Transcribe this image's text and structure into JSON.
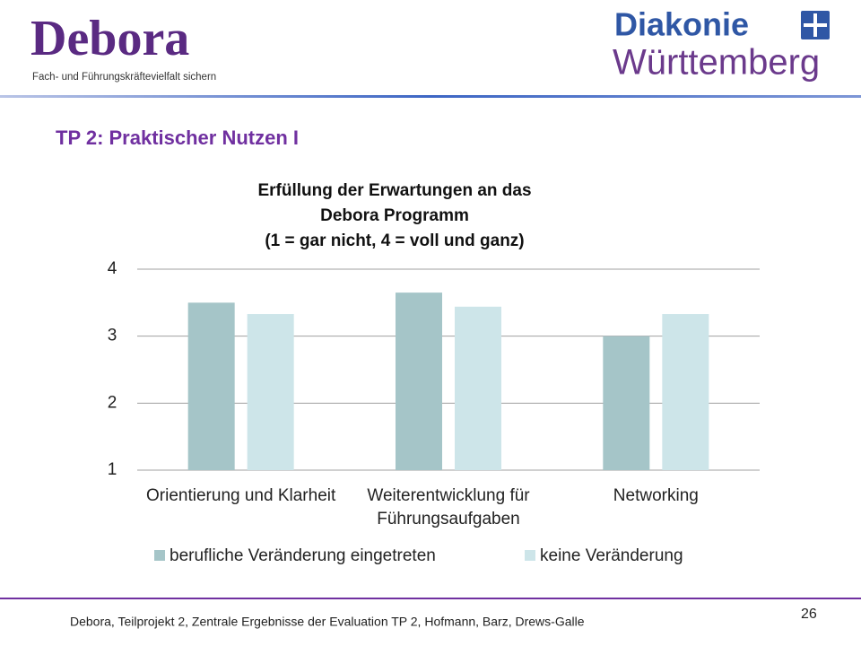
{
  "header": {
    "logo": "Debora",
    "tagline": "Fach- und Führungskräftevielfalt sichern",
    "brand": "Diakonie",
    "region": "Württemberg"
  },
  "slide_title": "TP 2: Praktischer Nutzen I",
  "chart_data": {
    "type": "bar",
    "title": [
      "Erfüllung der Erwartungen an das",
      "Debora Programm",
      "(1 = gar nicht, 4 = voll und ganz)"
    ],
    "categories": [
      "Orientierung und Klarheit",
      "Weiterentwicklung für Führungsaufgaben",
      "Networking"
    ],
    "series": [
      {
        "name": "berufliche Veränderung eingetreten",
        "color": "#a5c5c8",
        "values": [
          3.5,
          3.65,
          3.0
        ]
      },
      {
        "name": "keine Veränderung",
        "color": "#cde5e9",
        "values": [
          3.33,
          3.44,
          3.33
        ]
      }
    ],
    "ylim": [
      1,
      4
    ],
    "yticks": [
      1,
      2,
      3,
      4
    ],
    "grid": true,
    "legend": "bottom"
  },
  "footer": {
    "text": "Debora, Teilprojekt 2, Zentrale Ergebnisse der Evaluation TP 2, Hofmann, Barz, Drews-Galle",
    "page": "26"
  }
}
